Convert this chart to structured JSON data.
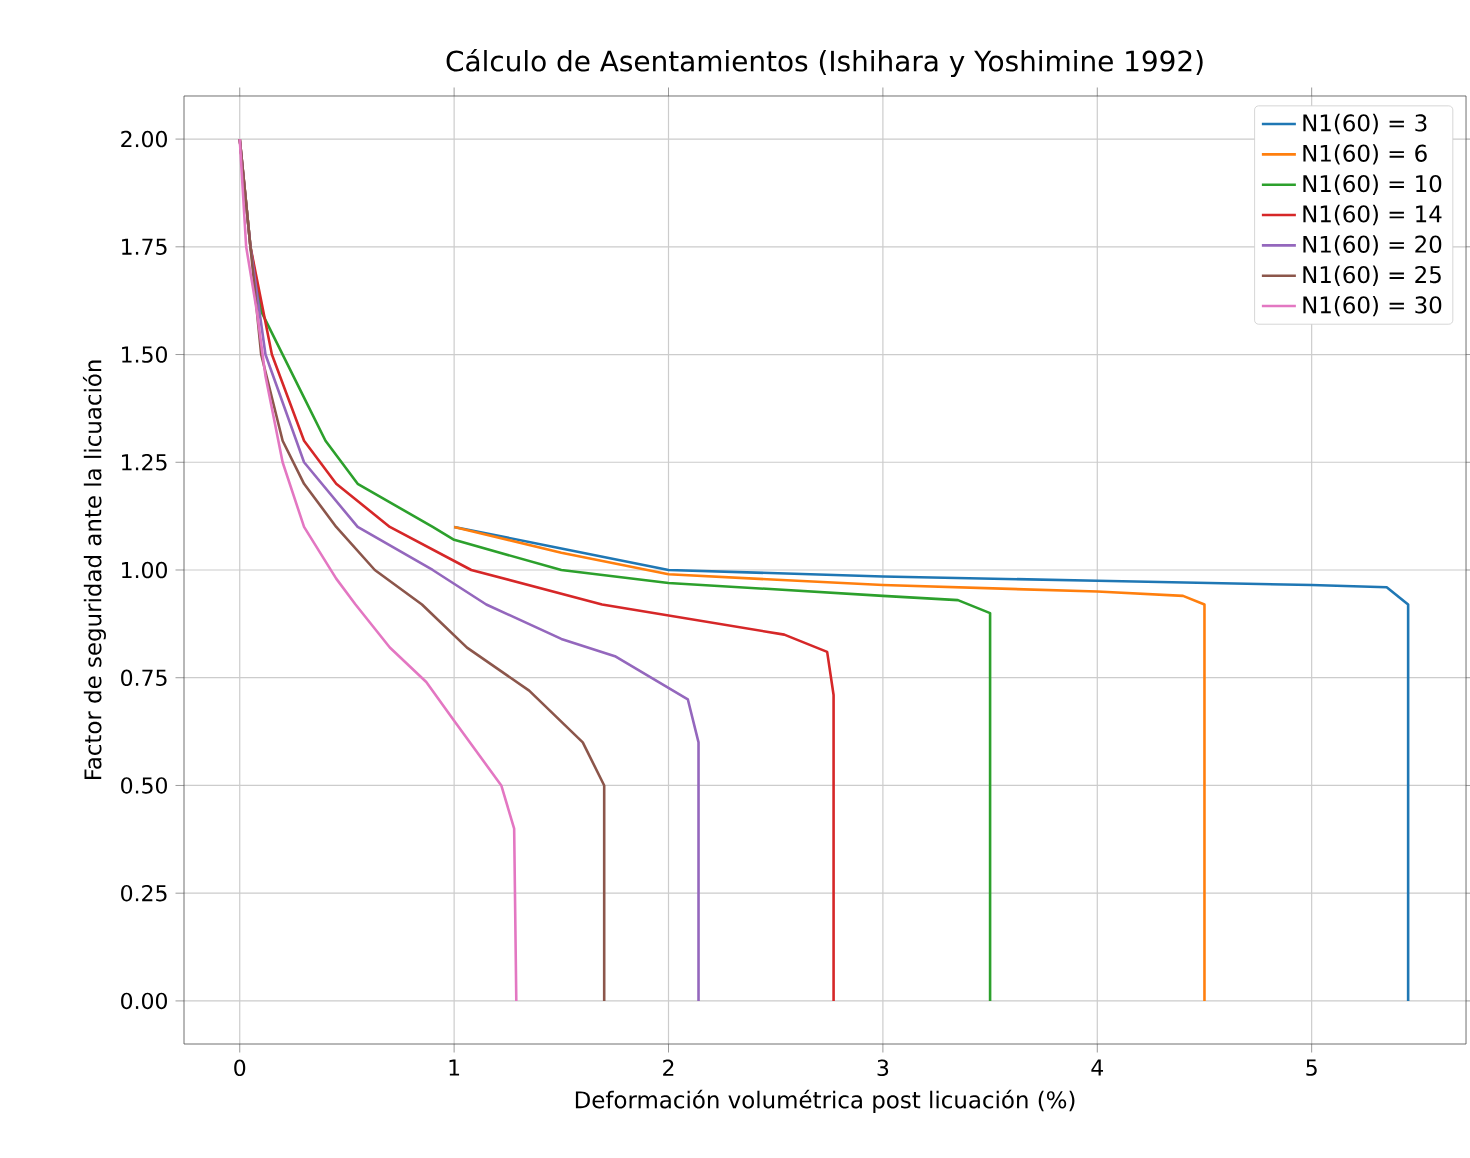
{
  "chart_data": {
    "type": "line",
    "title": "Cálculo de Asentamientos (Ishihara y Yoshimine 1992)",
    "xlabel": "Deformación volumétrica post licuación (%)",
    "ylabel": "Factor de seguridad ante la licuación",
    "xlim": [
      -0.26,
      5.72
    ],
    "ylim": [
      -0.1,
      2.1
    ],
    "xticks": [
      0,
      1,
      2,
      3,
      4,
      5
    ],
    "yticks": [
      {
        "value": 0,
        "label": "0.00"
      },
      {
        "value": 0.25,
        "label": "0.25"
      },
      {
        "value": 0.5,
        "label": "0.50"
      },
      {
        "value": 0.75,
        "label": "0.75"
      },
      {
        "value": 1,
        "label": "1.00"
      },
      {
        "value": 1.25,
        "label": "1.25"
      },
      {
        "value": 1.5,
        "label": "1.50"
      },
      {
        "value": 1.75,
        "label": "1.75"
      },
      {
        "value": 2,
        "label": "2.00"
      }
    ],
    "grid": true,
    "legend": "top right",
    "line_style": "solid",
    "series": [
      {
        "name": "N1(60) = 3",
        "color": "#1f77b4",
        "x": [
          1.0,
          1.5,
          2.0,
          3.0,
          4.0,
          5.0,
          5.35,
          5.45,
          5.45
        ],
        "values": [
          1.1,
          1.05,
          1.0,
          0.985,
          0.975,
          0.965,
          0.96,
          0.92,
          0
        ]
      },
      {
        "name": "N1(60) = 6",
        "color": "#ff7f0e",
        "x": [
          1.0,
          1.5,
          2.0,
          3.0,
          4.0,
          4.4,
          4.5,
          4.5
        ],
        "values": [
          1.1,
          1.04,
          0.99,
          0.965,
          0.95,
          0.94,
          0.92,
          0
        ]
      },
      {
        "name": "N1(60) = 10",
        "color": "#2ca02c",
        "x": [
          0,
          0.05,
          0.1,
          0.2,
          0.3,
          0.4,
          0.55,
          0.9,
          1.0,
          1.5,
          2.0,
          3.0,
          3.35,
          3.5,
          3.5
        ],
        "values": [
          2,
          1.75,
          1.6,
          1.5,
          1.4,
          1.3,
          1.2,
          1.1,
          1.07,
          1.0,
          0.97,
          0.94,
          0.93,
          0.9,
          0
        ]
      },
      {
        "name": "N1(60) = 14",
        "color": "#d62728",
        "x": [
          0,
          0.05,
          0.15,
          0.3,
          0.45,
          0.7,
          1.08,
          1.69,
          2.54,
          2.74,
          2.77,
          2.77
        ],
        "values": [
          2,
          1.75,
          1.5,
          1.3,
          1.2,
          1.1,
          1.0,
          0.92,
          0.85,
          0.81,
          0.71,
          0
        ]
      },
      {
        "name": "N1(60) = 20",
        "color": "#9467bd",
        "x": [
          0,
          0.05,
          0.12,
          0.3,
          0.55,
          0.9,
          1.15,
          1.5,
          1.75,
          2.09,
          2.14,
          2.14
        ],
        "values": [
          2,
          1.75,
          1.5,
          1.25,
          1.1,
          1.0,
          0.92,
          0.84,
          0.8,
          0.7,
          0.6,
          0
        ]
      },
      {
        "name": "N1(60) = 25",
        "color": "#8c564b",
        "x": [
          0,
          0.05,
          0.1,
          0.2,
          0.3,
          0.45,
          0.63,
          0.85,
          1.06,
          1.35,
          1.6,
          1.7,
          1.7
        ],
        "values": [
          2,
          1.75,
          1.5,
          1.3,
          1.2,
          1.1,
          1.0,
          0.92,
          0.82,
          0.72,
          0.6,
          0.5,
          0
        ]
      },
      {
        "name": "N1(60) = 30",
        "color": "#e377c2",
        "x": [
          0,
          0.03,
          0.08,
          0.12,
          0.2,
          0.3,
          0.45,
          0.54,
          0.7,
          0.87,
          1.0,
          1.22,
          1.28,
          1.29
        ],
        "values": [
          2,
          1.75,
          1.6,
          1.45,
          1.25,
          1.1,
          0.98,
          0.92,
          0.82,
          0.74,
          0.65,
          0.5,
          0.4,
          0
        ]
      }
    ]
  }
}
